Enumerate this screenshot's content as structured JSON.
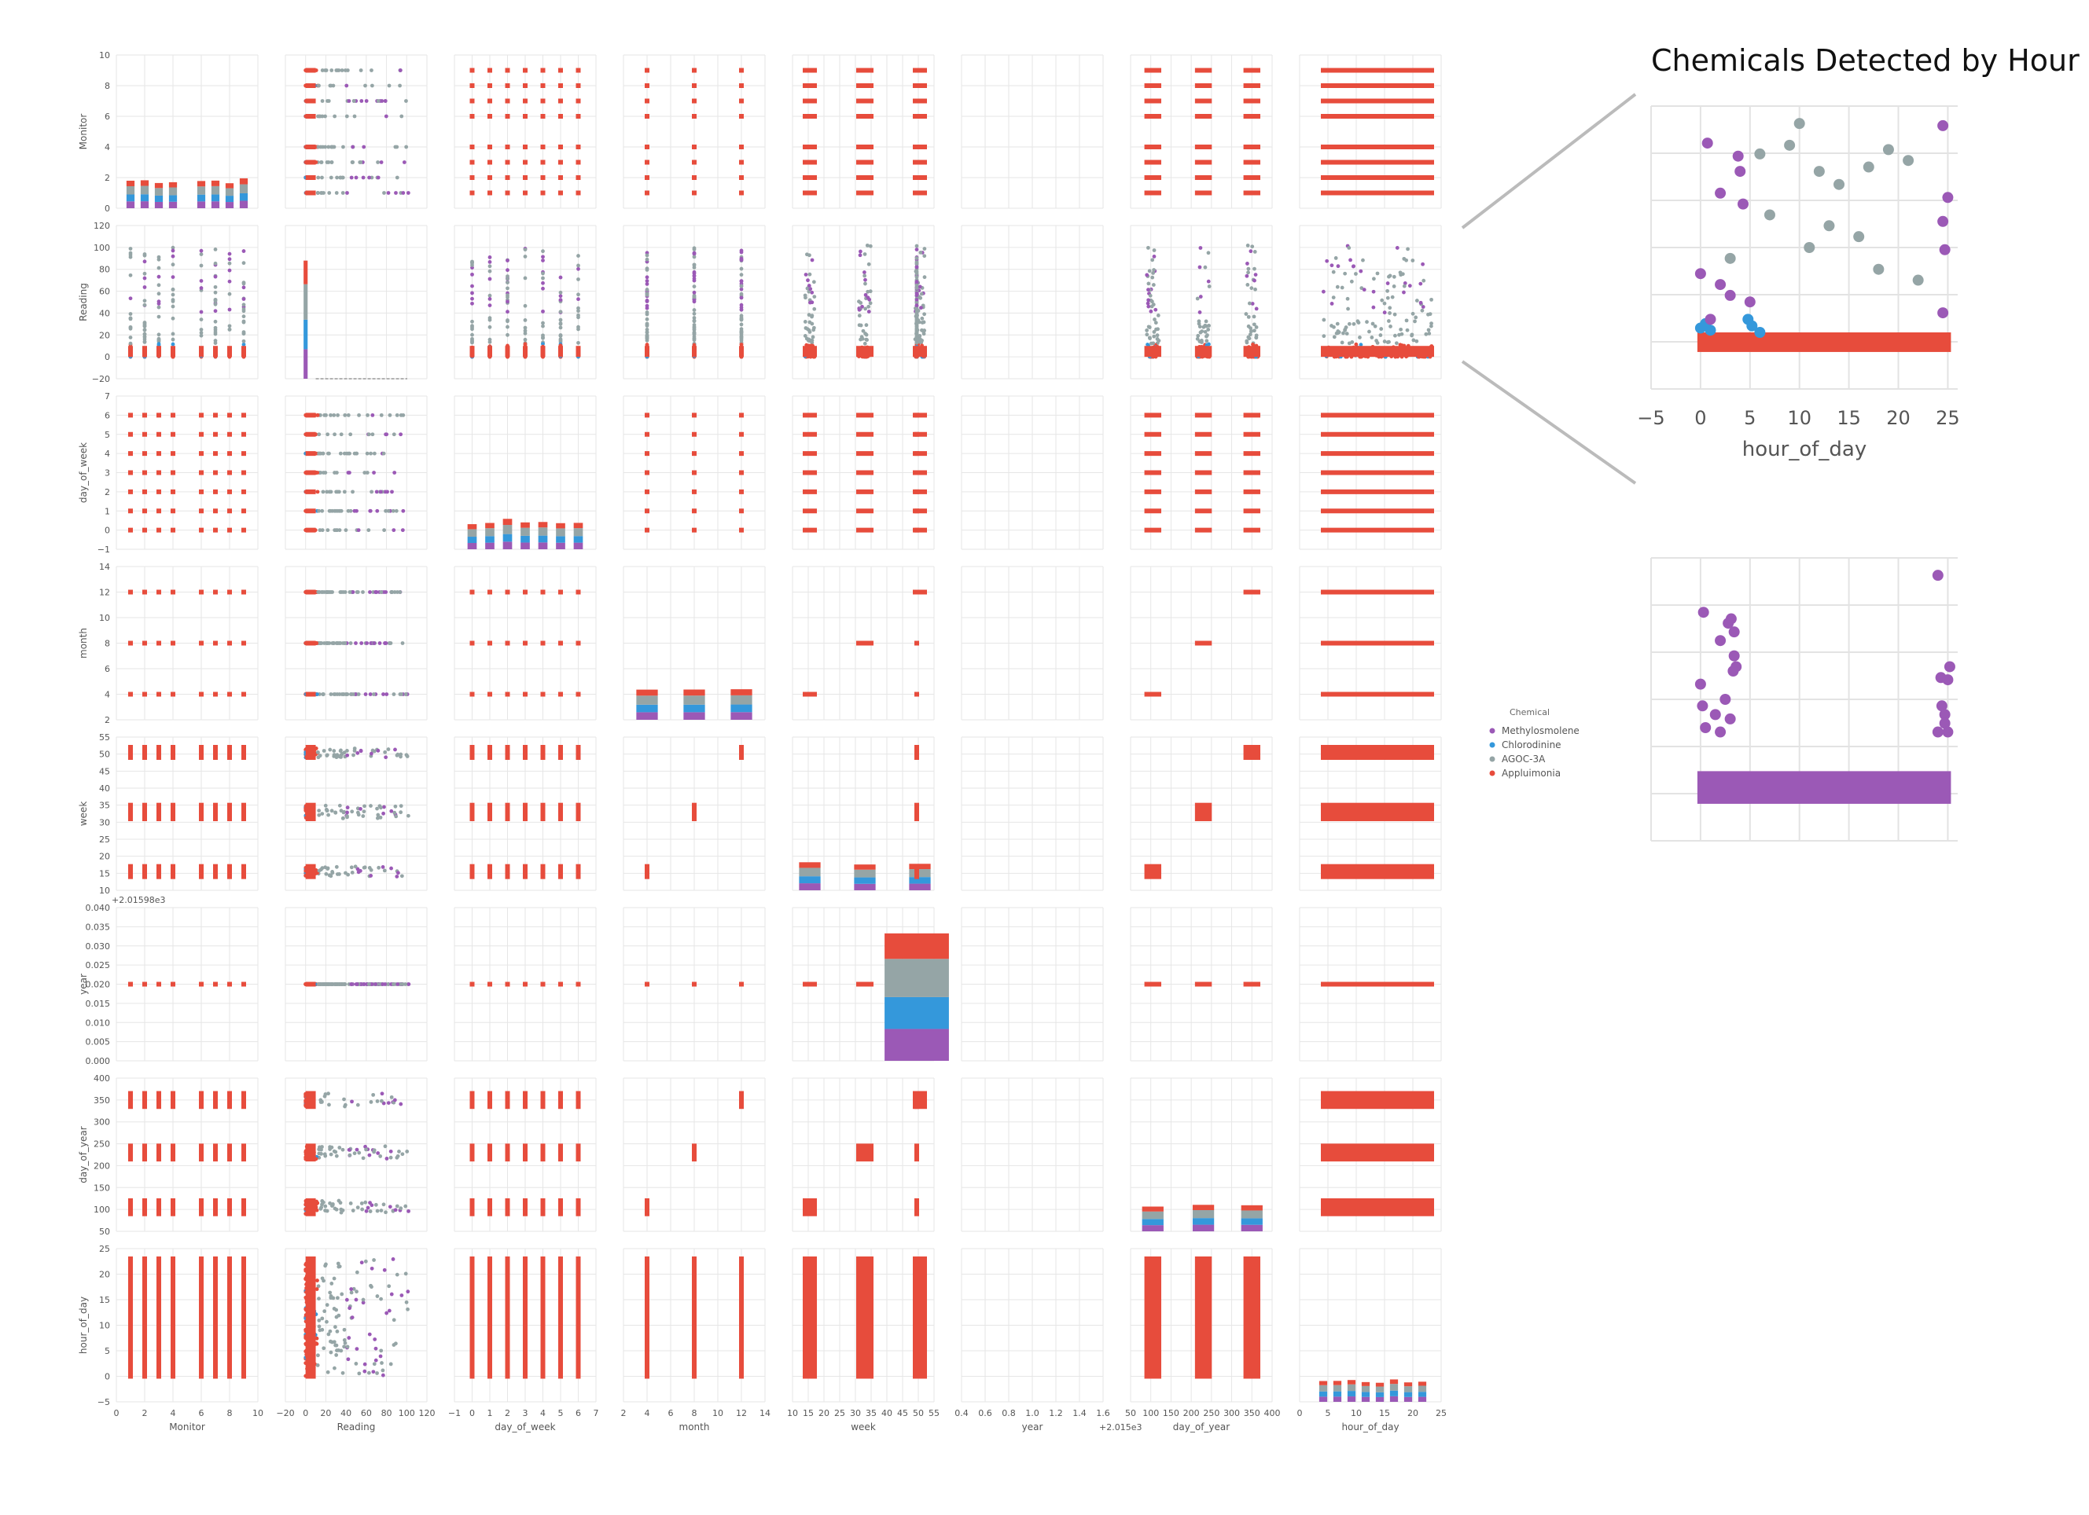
{
  "chart_data": [
    {
      "type": "scatter",
      "kind": "pairplot",
      "variables": [
        "Monitor",
        "Reading",
        "day_of_week",
        "month",
        "week",
        "year",
        "day_of_year",
        "hour_of_day"
      ],
      "axes": {
        "Monitor": {
          "xlim": [
            0,
            10
          ],
          "xticks": [
            "0",
            "2",
            "4",
            "6",
            "8",
            "10"
          ],
          "ylim": [
            0,
            10
          ],
          "yticks": [
            "0",
            "2",
            "4",
            "6",
            "8",
            "10"
          ]
        },
        "Reading": {
          "xlim": [
            -20,
            120
          ],
          "xticks": [
            "−20",
            "0",
            "20",
            "40",
            "60",
            "80",
            "100",
            "120"
          ],
          "ylim": [
            -20,
            120
          ],
          "yticks": [
            "−20",
            "0",
            "20",
            "40",
            "60",
            "80",
            "100",
            "120"
          ]
        },
        "day_of_week": {
          "xlim": [
            -1,
            7
          ],
          "xticks": [
            "−1",
            "0",
            "1",
            "2",
            "3",
            "4",
            "5",
            "6",
            "7"
          ],
          "ylim": [
            -1,
            7
          ],
          "yticks": [
            "−1",
            "0",
            "1",
            "2",
            "3",
            "4",
            "5",
            "6",
            "7"
          ]
        },
        "month": {
          "xlim": [
            2,
            14
          ],
          "xticks": [
            "2",
            "4",
            "6",
            "8",
            "10",
            "12",
            "14"
          ],
          "ylim": [
            2,
            14
          ],
          "yticks": [
            "2",
            "4",
            "6",
            "8",
            "10",
            "12",
            "14"
          ]
        },
        "week": {
          "xlim": [
            10,
            55
          ],
          "xticks": [
            "10",
            "15",
            "20",
            "25",
            "30",
            "35",
            "40",
            "45",
            "50",
            "55"
          ],
          "ylim": [
            10,
            55
          ],
          "yticks": [
            "10",
            "15",
            "20",
            "25",
            "30",
            "35",
            "40",
            "45",
            "50",
            "55"
          ]
        },
        "year": {
          "xlim": [
            0.4,
            1.6
          ],
          "xticks": [
            "0.4",
            "0.6",
            "0.8",
            "1.0",
            "1.2",
            "1.4",
            "1.6"
          ],
          "xoffset": "+2.015e3",
          "ylim": [
            0,
            0.04
          ],
          "yticks": [
            "0.000",
            "0.005",
            "0.010",
            "0.015",
            "0.020",
            "0.025",
            "0.030",
            "0.035",
            "0.040"
          ],
          "yoffset": "+2.01598e3"
        },
        "day_of_year": {
          "xlim": [
            50,
            400
          ],
          "xticks": [
            "50",
            "100",
            "150",
            "200",
            "250",
            "300",
            "350",
            "400"
          ],
          "ylim": [
            50,
            400
          ],
          "yticks": [
            "50",
            "100",
            "150",
            "200",
            "250",
            "300",
            "350",
            "400"
          ]
        },
        "hour_of_day": {
          "xlim": [
            -5,
            25
          ],
          "xticks": [
            "0",
            "5",
            "10",
            "15",
            "20",
            "25"
          ],
          "ylim": [
            -5,
            25
          ],
          "yticks": [
            "−5",
            "0",
            "5",
            "10",
            "15",
            "20",
            "25"
          ]
        }
      },
      "values": {
        "Monitor": [
          1,
          2,
          3,
          4,
          6,
          7,
          8,
          9
        ],
        "Reading_range": [
          0,
          102
        ],
        "day_of_week": [
          0,
          1,
          2,
          3,
          4,
          5,
          6
        ],
        "month": [
          4,
          8,
          12
        ],
        "week_groups": [
          [
            14,
            17
          ],
          [
            31,
            35
          ],
          [
            49,
            52
          ]
        ],
        "year": 0.02,
        "day_of_year_groups": [
          [
            90,
            120
          ],
          [
            215,
            245
          ],
          [
            335,
            365
          ]
        ],
        "hour_of_day": [
          0,
          23
        ]
      },
      "legend": {
        "title": "Chemical",
        "entries": [
          {
            "name": "Methylosmolene",
            "color": "#9b59b6"
          },
          {
            "name": "Chlorodinine",
            "color": "#3498db"
          },
          {
            "name": "AGOC-3A",
            "color": "#95a5a6"
          },
          {
            "name": "Appluimonia",
            "color": "#e74c3c"
          }
        ],
        "placement": "right"
      },
      "grid": true
    },
    {
      "type": "scatter",
      "title": "Chemicals Detected by Hour",
      "xlabel": "hour_of_day",
      "xlim": [
        -5,
        26
      ],
      "xticks": [
        "−5",
        "0",
        "5",
        "10",
        "15",
        "20",
        "25"
      ],
      "series": [
        {
          "name": "Appluimonia",
          "color": "#e74c3c",
          "band": [
            0,
            6
          ]
        },
        {
          "name": "Chlorodinine",
          "color": "#3498db",
          "points": [
            [
              0,
              8
            ],
            [
              0.5,
              10
            ],
            [
              1,
              7
            ],
            [
              4.8,
              12
            ],
            [
              5.2,
              9
            ],
            [
              6,
              6
            ]
          ]
        },
        {
          "name": "AGOC-3A",
          "color": "#95a5a6",
          "points": [
            [
              10,
              102
            ],
            [
              6,
              88
            ],
            [
              9,
              92
            ],
            [
              12,
              80
            ],
            [
              14,
              74
            ],
            [
              17,
              82
            ],
            [
              19,
              90
            ],
            [
              21,
              85
            ],
            [
              7,
              60
            ],
            [
              13,
              55
            ],
            [
              16,
              50
            ],
            [
              3,
              40
            ],
            [
              11,
              45
            ],
            [
              18,
              35
            ],
            [
              22,
              30
            ]
          ]
        },
        {
          "name": "Methylosmolene",
          "color": "#9b59b6",
          "points": [
            [
              24.5,
              101
            ],
            [
              0.7,
              93
            ],
            [
              3.8,
              87
            ],
            [
              4,
              80
            ],
            [
              2,
              70
            ],
            [
              4.3,
              65
            ],
            [
              25,
              68
            ],
            [
              24.5,
              57
            ],
            [
              24.7,
              44
            ],
            [
              0,
              33
            ],
            [
              2,
              28
            ],
            [
              3,
              23
            ],
            [
              5,
              20
            ],
            [
              24.5,
              15
            ],
            [
              1,
              12
            ]
          ]
        }
      ]
    },
    {
      "type": "scatter",
      "series": [
        {
          "name": "Methylosmolene",
          "color": "#9b59b6",
          "points": [
            [
              24,
              102
            ],
            [
              0.3,
              85
            ],
            [
              2.8,
              80
            ],
            [
              3.1,
              82
            ],
            [
              3.4,
              76
            ],
            [
              2,
              72
            ],
            [
              3.4,
              65
            ],
            [
              3.6,
              60
            ],
            [
              3.3,
              58
            ],
            [
              0,
              52
            ],
            [
              2.5,
              45
            ],
            [
              24.3,
              55
            ],
            [
              25,
              54
            ],
            [
              24.4,
              42
            ],
            [
              24.7,
              38
            ],
            [
              24.7,
              34
            ],
            [
              25.2,
              60
            ],
            [
              0.2,
              42
            ],
            [
              1.5,
              38
            ],
            [
              3,
              36
            ],
            [
              0.5,
              32
            ],
            [
              2,
              30
            ],
            [
              24,
              30
            ],
            [
              25,
              30
            ]
          ],
          "band": [
            0,
            12
          ]
        }
      ]
    }
  ]
}
